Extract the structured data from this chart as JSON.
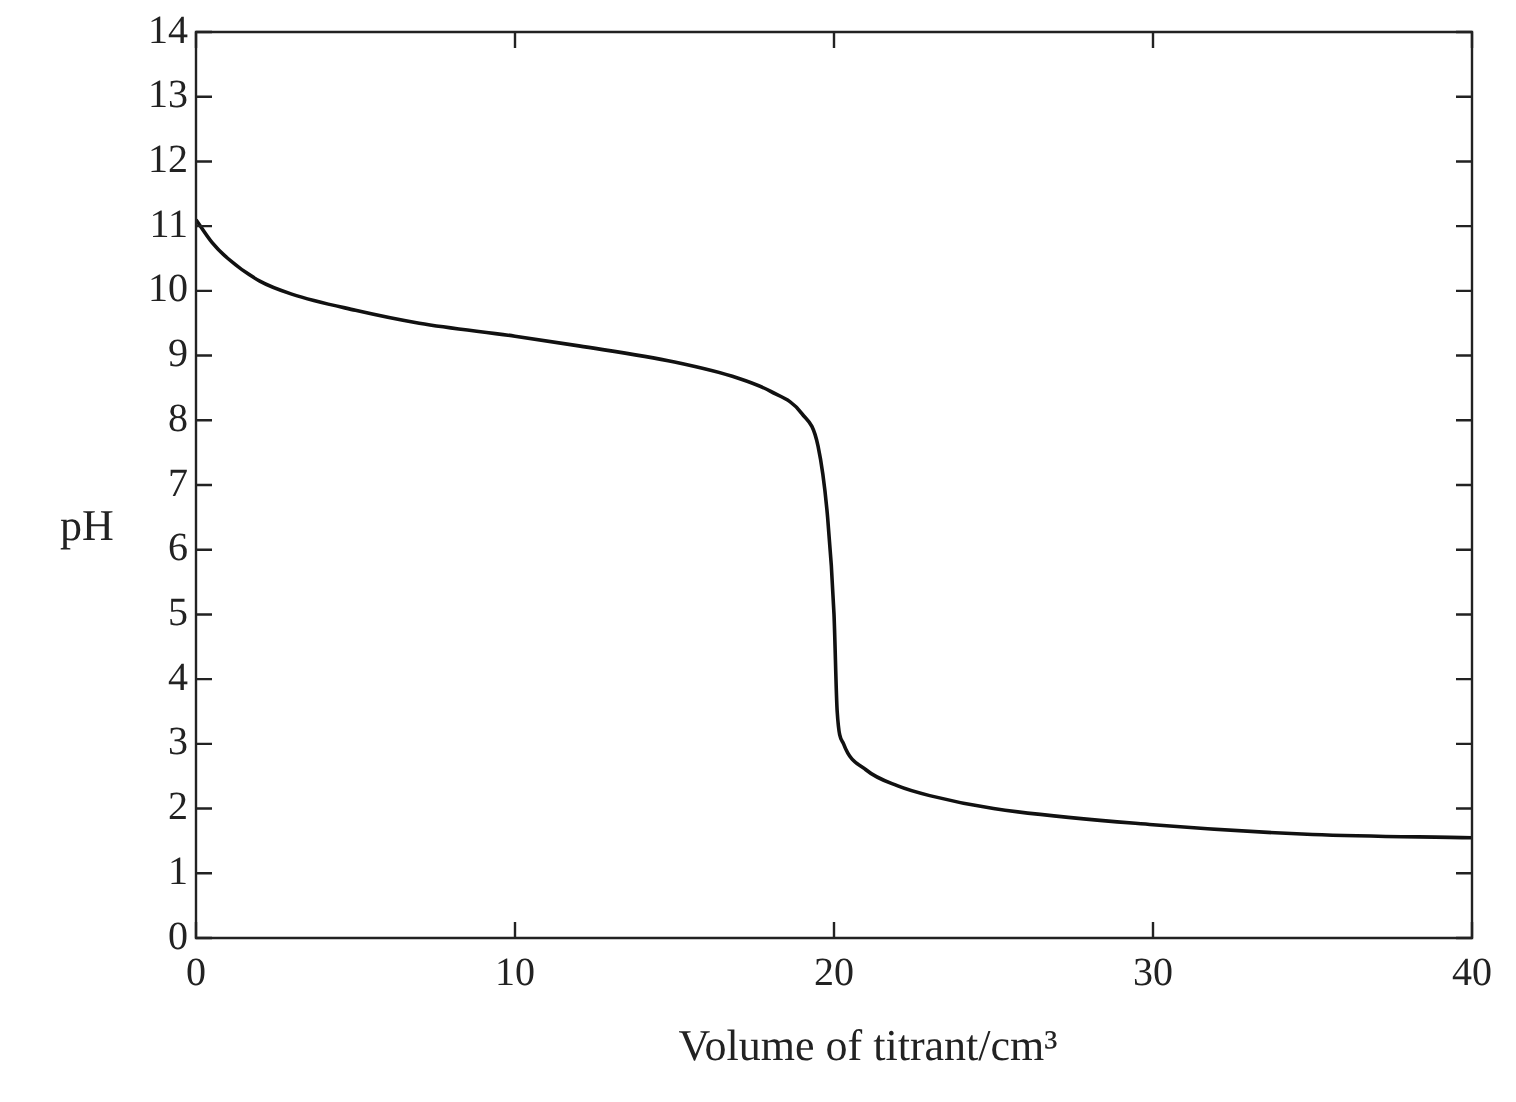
{
  "chart_data": {
    "type": "line",
    "xlabel": "Volume of titrant/cm³",
    "ylabel": "pH",
    "x": [
      0,
      0.5,
      1,
      2,
      3,
      5,
      7,
      10,
      12,
      15,
      17,
      18,
      19,
      19.5,
      19.8,
      20,
      20.1,
      20.3,
      21,
      22,
      23,
      25,
      30,
      35,
      40
    ],
    "series": [
      {
        "color": "#111111",
        "values": [
          11.1,
          10.75,
          10.5,
          10.15,
          9.95,
          9.7,
          9.5,
          9.3,
          9.15,
          8.9,
          8.65,
          8.45,
          8.1,
          7.6,
          6.5,
          5,
          3.5,
          3.0,
          2.6,
          2.35,
          2.2,
          2.0,
          1.75,
          1.6,
          1.55
        ]
      }
    ],
    "xlim": [
      0,
      40
    ],
    "xticks": [
      0,
      10,
      20,
      30,
      40
    ],
    "ylim": [
      0,
      14
    ],
    "yticks": [
      0,
      1,
      2,
      3,
      4,
      5,
      6,
      7,
      8,
      9,
      10,
      11,
      12,
      13,
      14
    ],
    "grid": false,
    "legend": false,
    "marker": "none",
    "line_style": "solid"
  }
}
